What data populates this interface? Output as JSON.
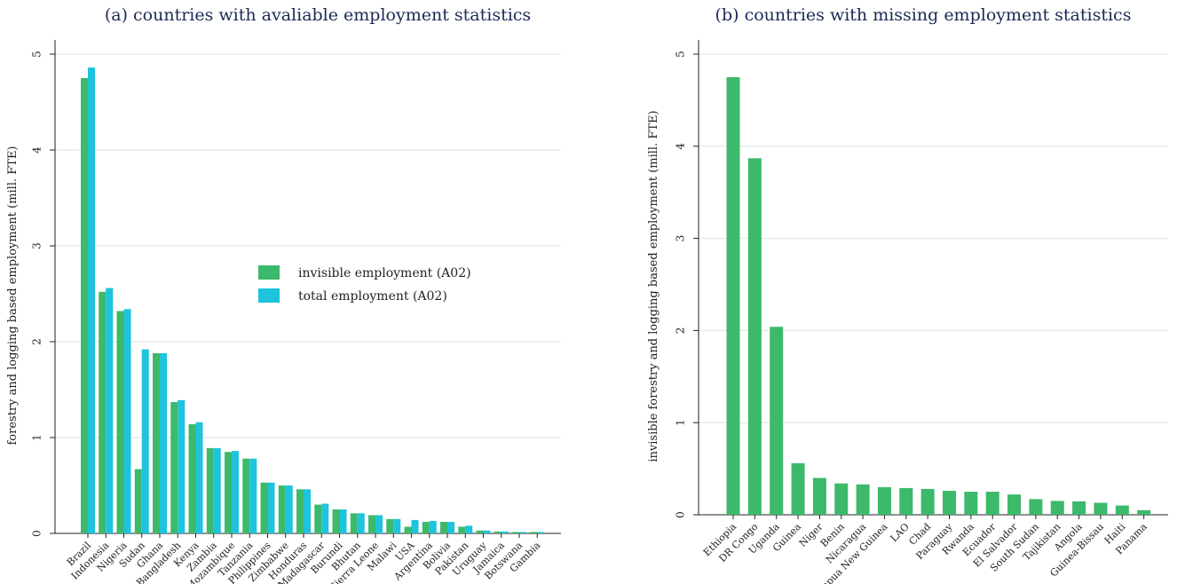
{
  "colors": {
    "invisible": "#3cb96a",
    "total": "#1ec3dc",
    "grid": "#e3ebef",
    "axis": "#222222"
  },
  "chart_data": [
    {
      "type": "bar",
      "title": "(a) countries with avaliable employment statistics",
      "ylabel": "forestry and logging based employment (mill. FTE)",
      "xlabel": "",
      "ylim": [
        0,
        5
      ],
      "yticks": [
        0,
        1,
        2,
        3,
        4,
        5
      ],
      "grid": true,
      "legend_position": "center-right",
      "categories": [
        "Brazil",
        "Indonesia",
        "Nigeria",
        "Sudan",
        "Ghana",
        "Bangladesh",
        "Kenya",
        "Zambia",
        "Mozambique",
        "Tanzania",
        "Philippines",
        "Zimbabwe",
        "Honduras",
        "Madagascar",
        "Burundi",
        "Bhutan",
        "Sierra Leone",
        "Malawi",
        "USA",
        "Argentina",
        "Bolivia",
        "Pakistan",
        "Uruguay",
        "Jamaica",
        "Botswana",
        "Gambia"
      ],
      "series": [
        {
          "name": "invisible employment (A02)",
          "values": [
            4.75,
            2.52,
            2.32,
            0.67,
            1.88,
            1.37,
            1.14,
            0.89,
            0.85,
            0.78,
            0.53,
            0.5,
            0.46,
            0.3,
            0.25,
            0.21,
            0.19,
            0.15,
            0.07,
            0.12,
            0.12,
            0.07,
            0.03,
            0.02,
            0.015,
            0.015
          ]
        },
        {
          "name": "total employment (A02)",
          "values": [
            4.86,
            2.56,
            2.34,
            1.92,
            1.88,
            1.39,
            1.16,
            0.89,
            0.86,
            0.78,
            0.53,
            0.5,
            0.46,
            0.31,
            0.25,
            0.21,
            0.19,
            0.15,
            0.14,
            0.13,
            0.12,
            0.08,
            0.03,
            0.02,
            0.015,
            0.015
          ]
        }
      ]
    },
    {
      "type": "bar",
      "title": "(b) countries with missing employment statistics",
      "ylabel": "invisible forestry and logging based employment (mill. FTE)",
      "xlabel": "",
      "ylim": [
        0,
        5
      ],
      "yticks": [
        0,
        1,
        2,
        3,
        4,
        5
      ],
      "grid": true,
      "categories": [
        "Ethiopia",
        "DR Congo",
        "Uganda",
        "Guinea",
        "Niger",
        "Benin",
        "Nicaragua",
        "Papua New Guinea",
        "LAO",
        "Chad",
        "Paraguay",
        "Rwanda",
        "Ecuador",
        "El Salvador",
        "South Sudan",
        "Tajikistan",
        "Angola",
        "Guinea-Bissau",
        "Haiti",
        "Panama"
      ],
      "values": [
        4.75,
        3.87,
        2.04,
        0.56,
        0.4,
        0.34,
        0.33,
        0.3,
        0.29,
        0.28,
        0.26,
        0.25,
        0.25,
        0.22,
        0.17,
        0.15,
        0.145,
        0.13,
        0.1,
        0.05
      ]
    }
  ]
}
